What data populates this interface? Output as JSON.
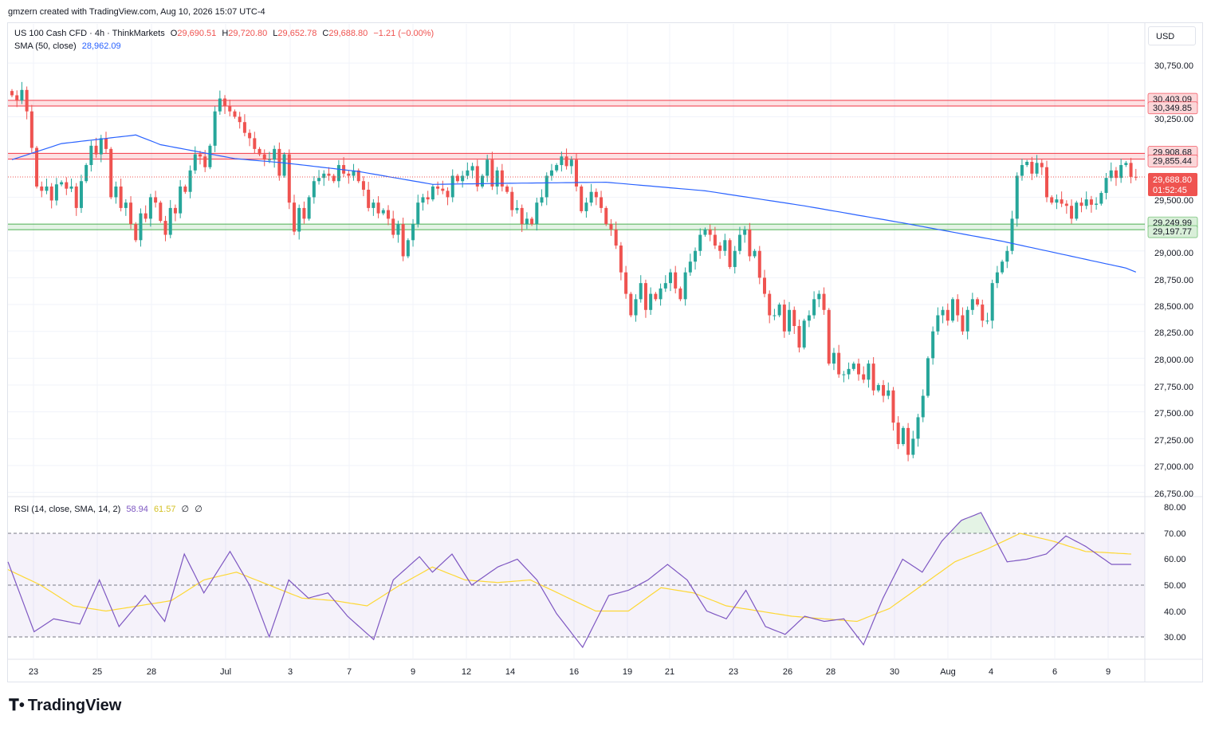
{
  "header": {
    "created_by": "gmzern created with TradingView.com, Aug 10, 2026 15:07 UTC-4"
  },
  "legend": {
    "symbol": "US 100 Cash CFD · 4h · ThinkMarkets",
    "o_label": "O",
    "o": "29,690.51",
    "h_label": "H",
    "h": "29,720.80",
    "l_label": "L",
    "l": "29,652.78",
    "c_label": "C",
    "c": "29,688.80",
    "change": "−1.21 (−0.00%)",
    "sma_label": "SMA (50, close)",
    "sma_value": "28,962.09",
    "rsi_label": "RSI (14, close, SMA, 14, 2)",
    "rsi_value": "58.94",
    "rsi_ma_value": "61.57",
    "na1": "∅",
    "na2": "∅"
  },
  "currency": "USD",
  "brand": "TradingView",
  "colors": {
    "up": "#26a69a",
    "down": "#ef5350",
    "sma": "#2962ff",
    "rsi": "#7e57c2",
    "rsi_ma": "#fdd835",
    "resistance": "#f23645",
    "support": "#4caf50"
  },
  "chart_data": [
    {
      "type": "candlestick",
      "title": "US 100 Cash CFD · 4h · ThinkMarkets",
      "ylim": [
        26750,
        31250
      ],
      "y_ticks": [
        "30,750.00",
        "30,250.00",
        "29,500.00",
        "29,000.00",
        "28,750.00",
        "28,500.00",
        "28,250.00",
        "28,000.00",
        "27,750.00",
        "27,500.00",
        "27,250.00",
        "27,000.00",
        "26,750.00"
      ],
      "x_ticks": [
        "23",
        "25",
        "28",
        "Jul",
        "3",
        "7",
        "9",
        "12",
        "14",
        "16",
        "19",
        "21",
        "23",
        "26",
        "28",
        "30",
        "Aug",
        "4",
        "6",
        "9"
      ],
      "zones": [
        {
          "type": "resistance",
          "from": 30349.85,
          "to": 30403.09,
          "labels": [
            "30,403.09",
            "30,349.85"
          ]
        },
        {
          "type": "resistance",
          "from": 29855.44,
          "to": 29908.68,
          "labels": [
            "29,908.68",
            "29,855.44"
          ]
        },
        {
          "type": "support",
          "from": 29197.77,
          "to": 29249.99,
          "labels": [
            "29,249.99",
            "29,197.77"
          ]
        }
      ],
      "last_price": {
        "value": "29,688.80",
        "countdown": "01:52:45"
      },
      "sma_key": [
        [
          0,
          29850
        ],
        [
          10,
          30000
        ],
        [
          25,
          30080
        ],
        [
          30,
          29990
        ],
        [
          45,
          29860
        ],
        [
          55,
          29820
        ],
        [
          70,
          29740
        ],
        [
          85,
          29620
        ],
        [
          100,
          29630
        ],
        [
          120,
          29640
        ],
        [
          140,
          29560
        ],
        [
          160,
          29420
        ],
        [
          180,
          29260
        ],
        [
          200,
          29090
        ],
        [
          225,
          28840
        ],
        [
          240,
          28560
        ],
        [
          250,
          28380
        ],
        [
          265,
          28220
        ],
        [
          275,
          28150
        ],
        [
          285,
          28230
        ],
        [
          300,
          28410
        ],
        [
          315,
          28560
        ],
        [
          330,
          28730
        ],
        [
          345,
          28890
        ],
        [
          353,
          28960
        ]
      ],
      "closes": [
        30450,
        30400,
        30500,
        30300,
        29960,
        29600,
        29560,
        29600,
        29470,
        29620,
        29640,
        29580,
        29600,
        29400,
        29650,
        29800,
        29980,
        29900,
        30050,
        29950,
        29500,
        29600,
        29400,
        29450,
        29250,
        29100,
        29350,
        29300,
        29500,
        29450,
        29280,
        29150,
        29400,
        29350,
        29600,
        29550,
        29750,
        29900,
        29880,
        29780,
        29980,
        30300,
        30420,
        30350,
        30300,
        30250,
        30200,
        30100,
        30050,
        29950,
        29900,
        29850,
        29850,
        29950,
        29700,
        29900,
        29450,
        29180,
        29400,
        29300,
        29500,
        29650,
        29680,
        29720,
        29700,
        29650,
        29800,
        29720,
        29700,
        29750,
        29650,
        29570,
        29400,
        29450,
        29350,
        29380,
        29300,
        29150,
        29250,
        28950,
        29100,
        29250,
        29450,
        29500,
        29480,
        29600,
        29580,
        29560,
        29500,
        29700,
        29650,
        29700,
        29750,
        29790,
        29600,
        29700,
        29850,
        29600,
        29750,
        29600,
        29550,
        29380,
        29400,
        29250,
        29300,
        29250,
        29450,
        29500,
        29700,
        29750,
        29800,
        29880,
        29790,
        29850,
        29600,
        29370,
        29450,
        29550,
        29500,
        29400,
        29250,
        29200,
        29050,
        28800,
        28600,
        28400,
        28550,
        28700,
        28450,
        28600,
        28550,
        28650,
        28700,
        28800,
        28650,
        28550,
        28800,
        28900,
        29000,
        29150,
        29200,
        29150,
        29050,
        29000,
        29100,
        28850,
        29000,
        29150,
        29200,
        28950,
        29000,
        28750,
        28600,
        28400,
        28400,
        28500,
        28250,
        28450,
        28300,
        28100,
        28350,
        28400,
        28550,
        28600,
        28450,
        27950,
        28050,
        27850,
        27850,
        27900,
        27950,
        27850,
        27800,
        27950,
        27700,
        27750,
        27650,
        27700,
        27400,
        27200,
        27350,
        27100,
        27250,
        27450,
        27650,
        28000,
        28250,
        28400,
        28450,
        28350,
        28550,
        28400,
        28250,
        28450,
        28550,
        28500,
        28350,
        28350,
        28700,
        28800,
        28900,
        29000,
        29300,
        29700,
        29800,
        29830,
        29720,
        29820,
        29780,
        29500,
        29450,
        29480,
        29440,
        29420,
        29300,
        29450,
        29420,
        29480,
        29430,
        29440,
        29540,
        29680,
        29750,
        29680,
        29800,
        29820,
        29690,
        29688
      ]
    },
    {
      "type": "line",
      "title": "RSI (14, close, SMA, 14, 2)",
      "ylim": [
        20,
        80
      ],
      "y_ticks": [
        "80.00",
        "70.00",
        "60.00",
        "50.00",
        "40.00",
        "30.00"
      ],
      "bands": {
        "upper": 70,
        "middle": 50,
        "lower": 30
      },
      "series": [
        {
          "name": "RSI",
          "key": [
            [
              0,
              59
            ],
            [
              8,
              32
            ],
            [
              14,
              37
            ],
            [
              22,
              35
            ],
            [
              28,
              52
            ],
            [
              34,
              34
            ],
            [
              42,
              46
            ],
            [
              48,
              36
            ],
            [
              54,
              62
            ],
            [
              60,
              47
            ],
            [
              68,
              63
            ],
            [
              74,
              50
            ],
            [
              80,
              30
            ],
            [
              86,
              52
            ],
            [
              92,
              45
            ],
            [
              98,
              47
            ],
            [
              104,
              38
            ],
            [
              112,
              29
            ],
            [
              118,
              52
            ],
            [
              126,
              61
            ],
            [
              130,
              55
            ],
            [
              136,
              62
            ],
            [
              142,
              50
            ],
            [
              150,
              57
            ],
            [
              156,
              60
            ],
            [
              162,
              52
            ],
            [
              168,
              39
            ],
            [
              176,
              26
            ],
            [
              184,
              46
            ],
            [
              190,
              48
            ],
            [
              196,
              52
            ],
            [
              202,
              58
            ],
            [
              208,
              52
            ],
            [
              214,
              40
            ],
            [
              220,
              37
            ],
            [
              226,
              48
            ],
            [
              232,
              34
            ],
            [
              238,
              31
            ],
            [
              244,
              38
            ],
            [
              250,
              36
            ],
            [
              256,
              37
            ],
            [
              262,
              27
            ],
            [
              268,
              45
            ],
            [
              274,
              60
            ],
            [
              280,
              55
            ],
            [
              286,
              67
            ],
            [
              292,
              75
            ],
            [
              298,
              78
            ],
            [
              306,
              59
            ],
            [
              312,
              60
            ],
            [
              318,
              62
            ],
            [
              324,
              69
            ],
            [
              330,
              65
            ],
            [
              338,
              58
            ],
            [
              344,
              58
            ]
          ]
        },
        {
          "name": "MA",
          "key": [
            [
              0,
              56
            ],
            [
              10,
              50
            ],
            [
              20,
              42
            ],
            [
              30,
              40
            ],
            [
              40,
              42
            ],
            [
              50,
              44
            ],
            [
              60,
              52
            ],
            [
              70,
              55
            ],
            [
              80,
              50
            ],
            [
              90,
              45
            ],
            [
              100,
              44
            ],
            [
              110,
              42
            ],
            [
              120,
              50
            ],
            [
              130,
              57
            ],
            [
              140,
              52
            ],
            [
              150,
              51
            ],
            [
              160,
              52
            ],
            [
              170,
              46
            ],
            [
              180,
              40
            ],
            [
              190,
              40
            ],
            [
              200,
              49
            ],
            [
              210,
              47
            ],
            [
              220,
              42
            ],
            [
              230,
              40
            ],
            [
              240,
              38
            ],
            [
              250,
              37
            ],
            [
              260,
              36
            ],
            [
              270,
              41
            ],
            [
              280,
              50
            ],
            [
              290,
              59
            ],
            [
              300,
              64
            ],
            [
              310,
              70
            ],
            [
              320,
              67
            ],
            [
              330,
              63
            ],
            [
              344,
              62
            ]
          ]
        }
      ]
    }
  ]
}
